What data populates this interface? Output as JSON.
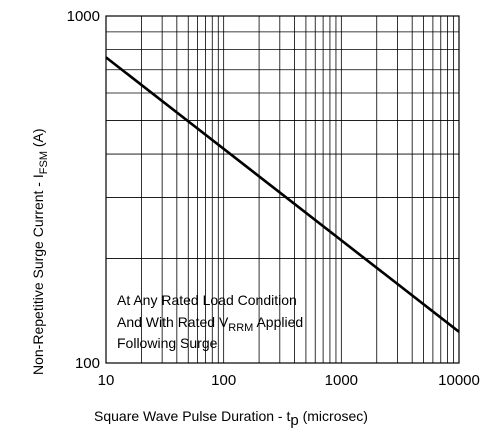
{
  "chart_data": {
    "type": "line",
    "x_scale": "log",
    "y_scale": "log",
    "xlim": [
      10,
      10000
    ],
    "ylim": [
      100,
      1000
    ],
    "x_ticks": [
      10,
      100,
      1000,
      10000
    ],
    "x_tick_labels": [
      "10",
      "100",
      "1000",
      "10000"
    ],
    "y_ticks": [
      100,
      1000
    ],
    "y_tick_labels": [
      "100",
      "1000"
    ],
    "grid": true,
    "xlabel": {
      "text": "Square Wave Pulse Duration - t",
      "sub": "p",
      "suffix": "  (microsec)"
    },
    "ylabel": {
      "text": "Non-Repetitive Surge Current - I",
      "sub": "FSM",
      "suffix": "   (A)"
    },
    "series": [
      {
        "x": [
          10,
          10000
        ],
        "y": [
          760,
          123
        ]
      }
    ],
    "annotation": {
      "line1": "At Any Rated Load Condition",
      "line2_prefix": "And With Rated V",
      "line2_sub": "RRM",
      "line2_suffix": "  Applied",
      "line3": "Following Surge"
    }
  }
}
